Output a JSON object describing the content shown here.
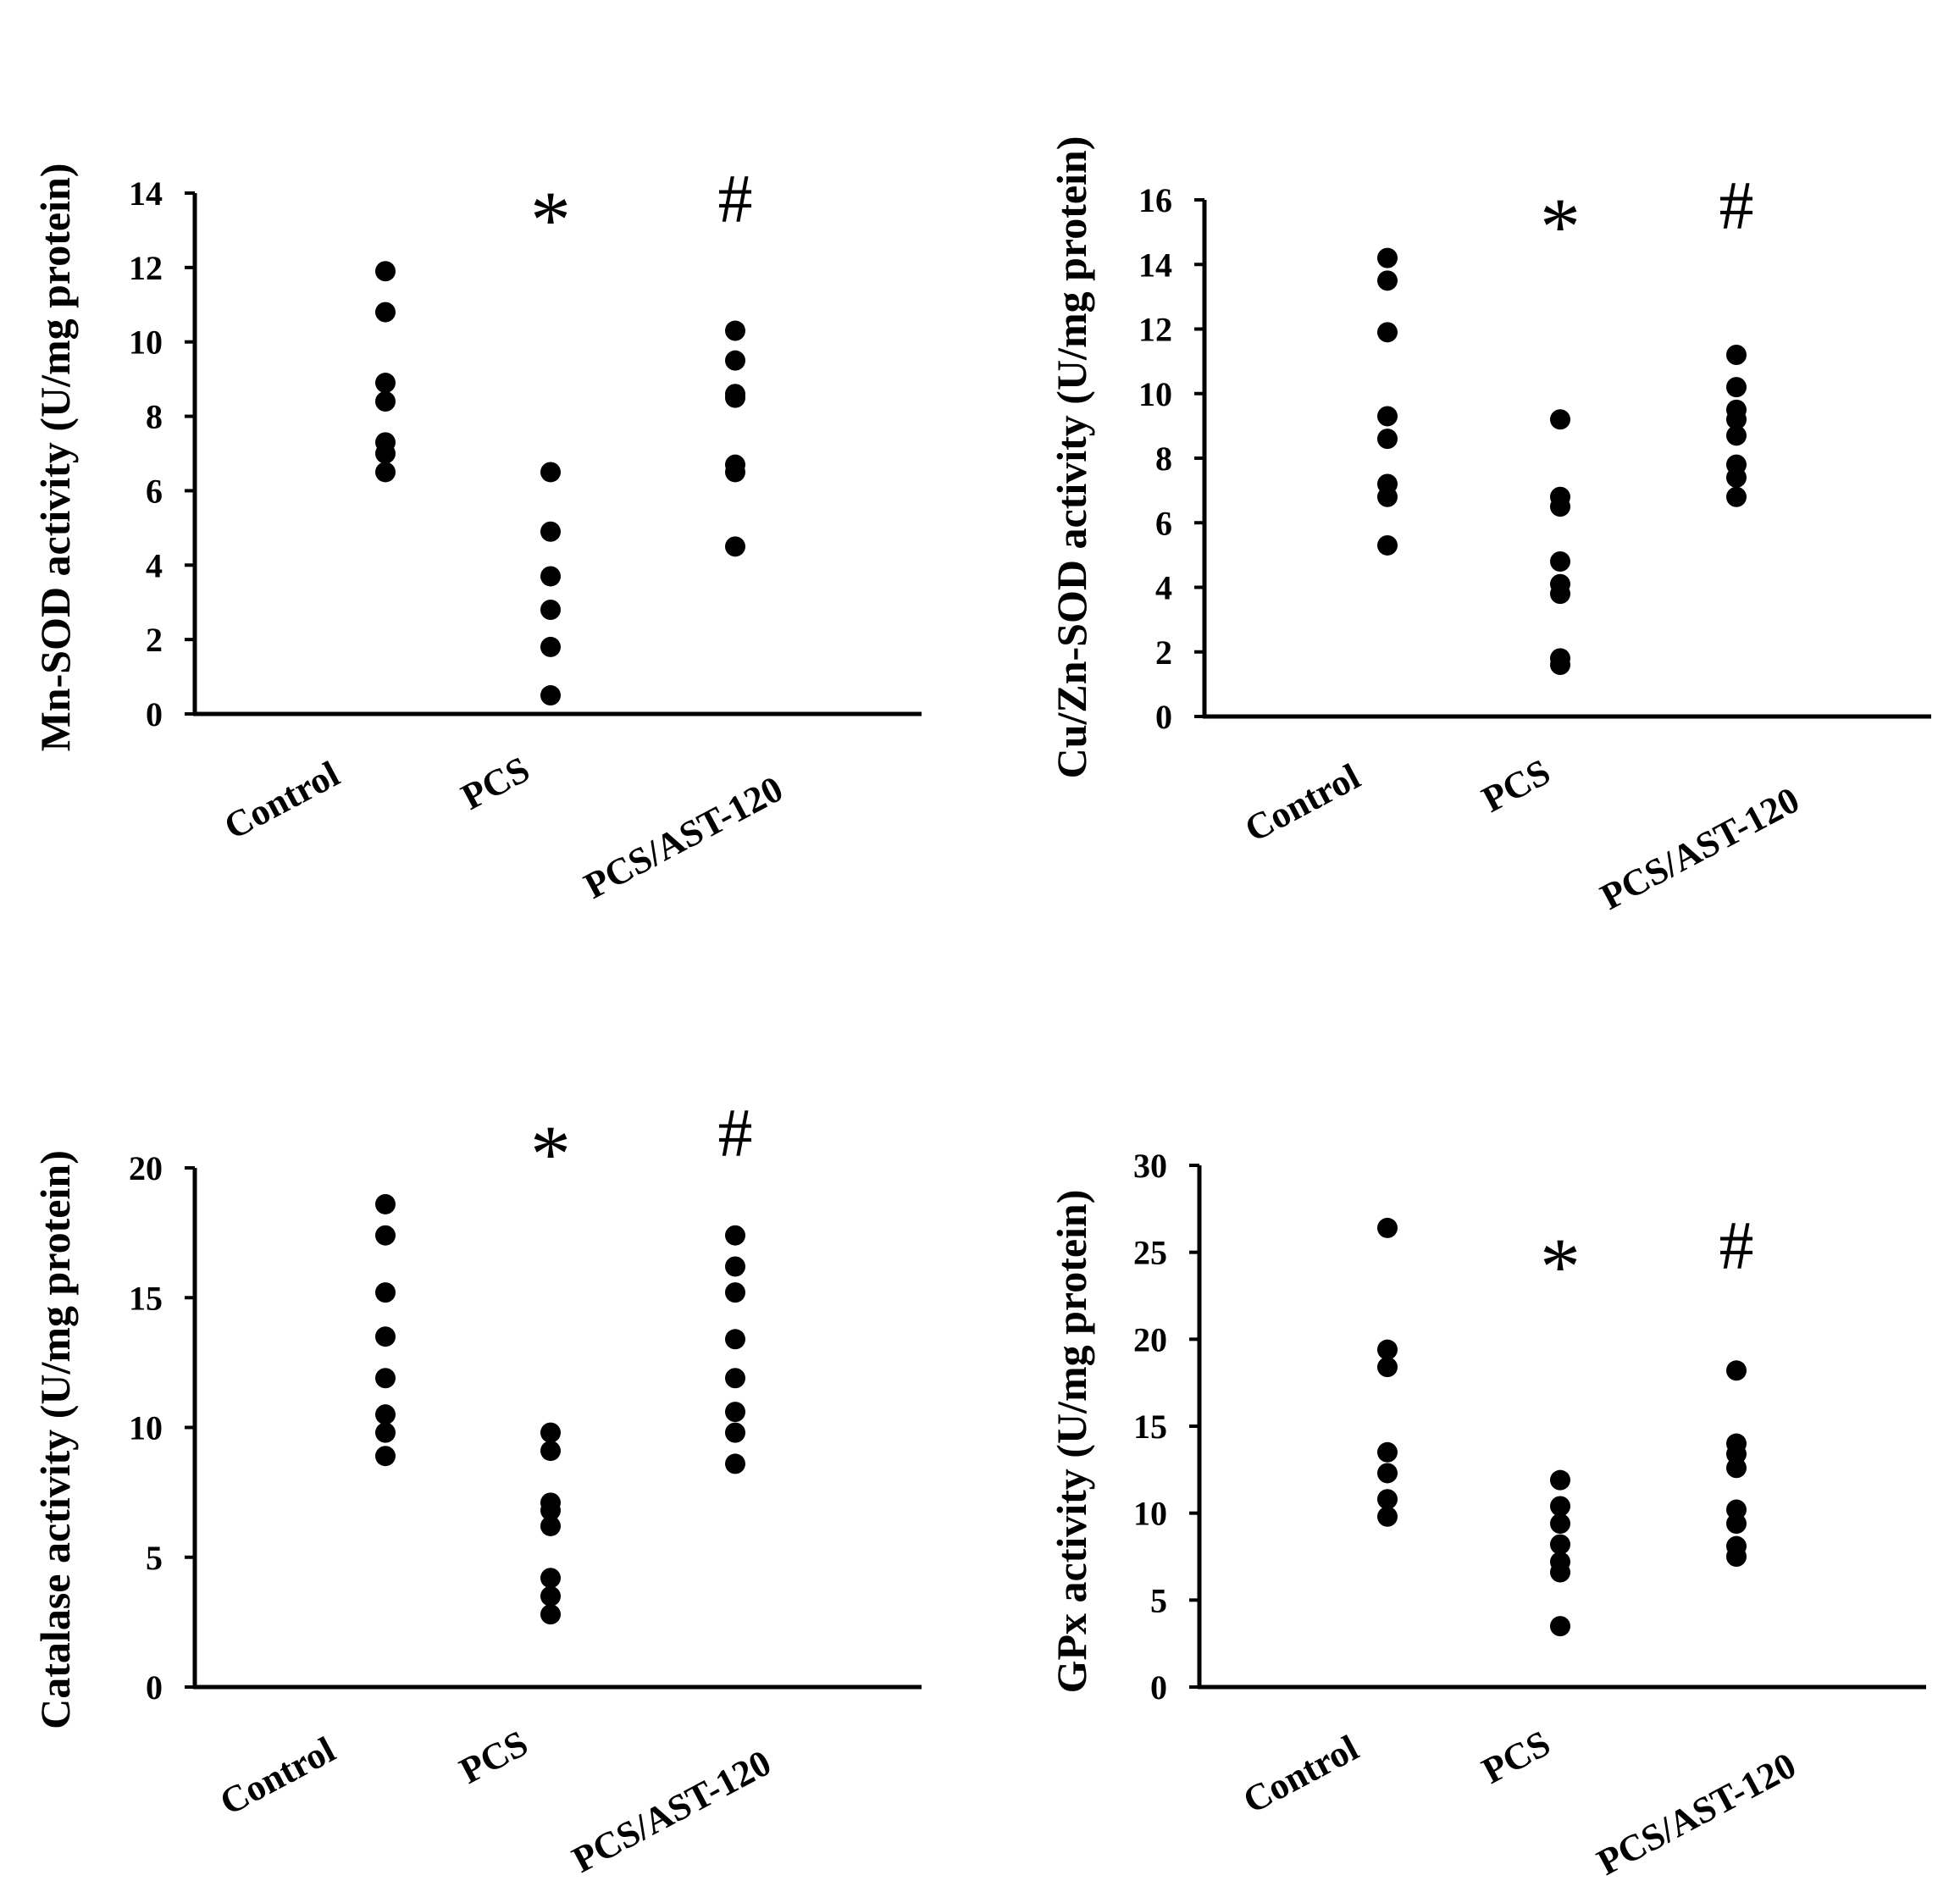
{
  "colors": {
    "marker": "#000000",
    "axis": "#000000",
    "background": "#ffffff"
  },
  "chart_data": [
    {
      "type": "scatter",
      "id": "mn-sod",
      "ylabel": "Mn-SOD activity (U/mg protein)",
      "ylim": [
        0,
        14
      ],
      "yticks": [
        0,
        2,
        4,
        6,
        8,
        10,
        12,
        14
      ],
      "categories": [
        "Control",
        "PCS",
        "PCS/AST-120"
      ],
      "series": [
        {
          "name": "Control",
          "values": [
            11.9,
            10.8,
            8.9,
            8.4,
            7.3,
            7.0,
            6.5
          ]
        },
        {
          "name": "PCS",
          "values": [
            6.5,
            4.9,
            3.7,
            2.8,
            1.8,
            0.5
          ]
        },
        {
          "name": "PCS/AST-120",
          "values": [
            10.3,
            9.5,
            8.6,
            8.5,
            6.7,
            6.5,
            4.5
          ]
        }
      ],
      "annotations": [
        {
          "category": "PCS",
          "text": "*"
        },
        {
          "category": "PCS/AST-120",
          "text": "#"
        }
      ]
    },
    {
      "type": "scatter",
      "id": "cu-zn-sod",
      "ylabel": "Cu/Zn-SOD activity (U/mg protein)",
      "ylim": [
        0,
        16
      ],
      "yticks": [
        0,
        2,
        4,
        6,
        8,
        10,
        12,
        14,
        16
      ],
      "categories": [
        "Control",
        "PCS",
        "PCS/AST-120"
      ],
      "series": [
        {
          "name": "Control",
          "values": [
            14.2,
            13.5,
            11.9,
            9.3,
            8.6,
            7.2,
            6.8,
            5.3
          ]
        },
        {
          "name": "PCS",
          "values": [
            9.2,
            6.8,
            6.5,
            4.8,
            4.1,
            3.8,
            1.8,
            1.6
          ]
        },
        {
          "name": "PCS/AST-120",
          "values": [
            11.2,
            10.2,
            9.5,
            9.2,
            8.7,
            7.8,
            7.4,
            6.8
          ]
        }
      ],
      "annotations": [
        {
          "category": "PCS",
          "text": "*"
        },
        {
          "category": "PCS/AST-120",
          "text": "#"
        }
      ]
    },
    {
      "type": "scatter",
      "id": "catalase",
      "ylabel": "Catalase activity (U/mg protein)",
      "ylim": [
        0,
        20
      ],
      "yticks": [
        0,
        5,
        10,
        15,
        20
      ],
      "categories": [
        "Control",
        "PCS",
        "PCS/AST-120"
      ],
      "series": [
        {
          "name": "Control",
          "values": [
            18.6,
            17.4,
            15.2,
            13.5,
            11.9,
            10.5,
            9.8,
            8.9
          ]
        },
        {
          "name": "PCS",
          "values": [
            9.8,
            9.1,
            7.1,
            6.8,
            6.2,
            4.2,
            3.5,
            2.8
          ]
        },
        {
          "name": "PCS/AST-120",
          "values": [
            17.4,
            16.2,
            15.2,
            13.4,
            11.9,
            10.6,
            9.8,
            8.6
          ]
        }
      ],
      "annotations": [
        {
          "category": "PCS",
          "text": "*"
        },
        {
          "category": "PCS/AST-120",
          "text": "#"
        }
      ]
    },
    {
      "type": "scatter",
      "id": "gpx",
      "ylabel": "GPx activity (U/mg protein)",
      "ylim": [
        0,
        30
      ],
      "yticks": [
        0,
        5,
        10,
        15,
        20,
        25,
        30
      ],
      "categories": [
        "Control",
        "PCS",
        "PCS/AST-120"
      ],
      "series": [
        {
          "name": "Control",
          "values": [
            26.4,
            19.4,
            18.4,
            13.5,
            12.3,
            10.8,
            9.8
          ]
        },
        {
          "name": "PCS",
          "values": [
            11.9,
            10.4,
            9.4,
            8.2,
            7.2,
            6.6,
            3.5
          ]
        },
        {
          "name": "PCS/AST-120",
          "values": [
            18.2,
            14.0,
            13.4,
            12.6,
            10.2,
            9.4,
            8.1,
            7.5
          ]
        }
      ],
      "annotations": [
        {
          "category": "PCS",
          "text": "*"
        },
        {
          "category": "PCS/AST-120",
          "text": "#"
        }
      ]
    }
  ]
}
